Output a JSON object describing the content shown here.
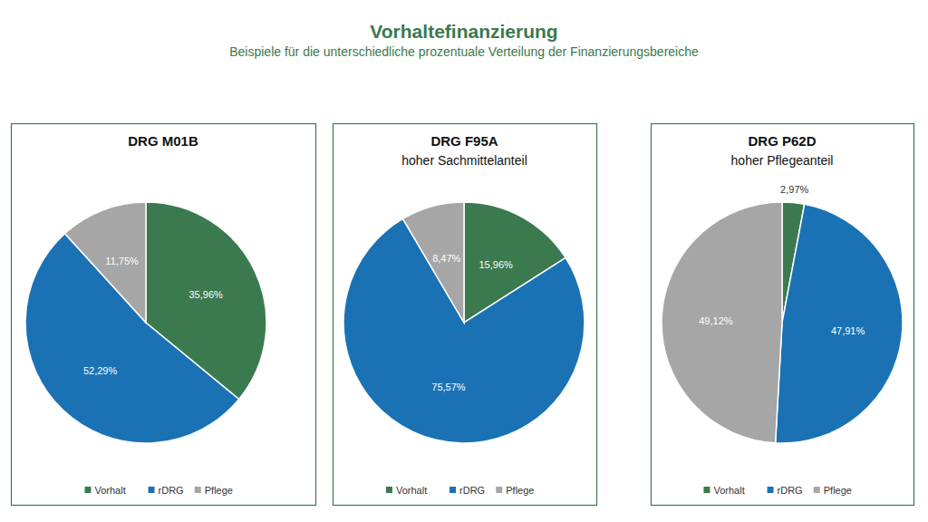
{
  "header": {
    "title": "Vorhaltefinanzierung",
    "subtitle": "Beispiele für die unterschiedliche prozentuale Verteilung der Finanzierungsbereiche"
  },
  "chart_data": [
    {
      "type": "pie",
      "title": "DRG M01B",
      "categories": [
        "Vorhalt",
        "rDRG",
        "Pflege"
      ],
      "values": [
        35.96,
        52.29,
        11.75
      ],
      "value_labels": [
        "35,96%",
        "52,29%",
        "11,75%"
      ],
      "colors": [
        "#3b7a4e",
        "#1a72b5",
        "#a6a6a6"
      ],
      "data_labels": true,
      "legend": "bottom"
    },
    {
      "type": "pie",
      "title": "DRG F95A",
      "subtitle": "hoher Sachmittelanteil",
      "categories": [
        "Vorhalt",
        "rDRG",
        "Pflege"
      ],
      "values": [
        15.96,
        75.57,
        8.47
      ],
      "value_labels": [
        "15,96%",
        "75,57%",
        "8,47%"
      ],
      "colors": [
        "#3b7a4e",
        "#1a72b5",
        "#a6a6a6"
      ],
      "data_labels": true,
      "legend": "bottom"
    },
    {
      "type": "pie",
      "title": "DRG P62D",
      "subtitle": "hoher Pflegeanteil",
      "categories": [
        "Vorhalt",
        "rDRG",
        "Pflege"
      ],
      "values": [
        2.97,
        47.91,
        49.12
      ],
      "value_labels": [
        "2,97%",
        "47,91%",
        "49,12%"
      ],
      "colors": [
        "#3b7a4e",
        "#1a72b5",
        "#a6a6a6"
      ],
      "data_labels": true,
      "legend": "bottom"
    }
  ]
}
